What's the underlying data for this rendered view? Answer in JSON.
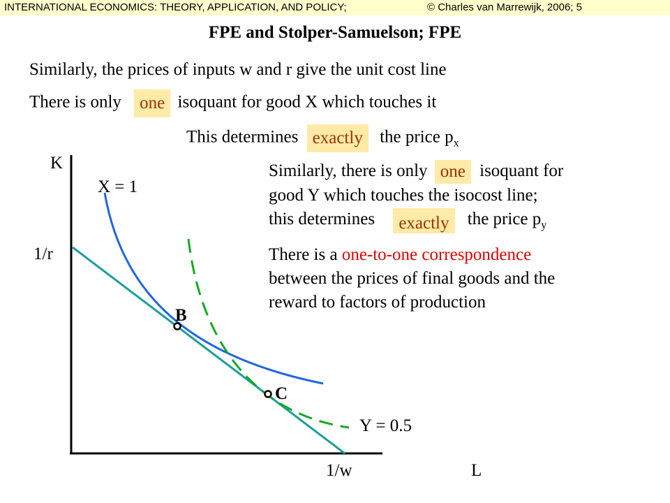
{
  "header": {
    "left_text": "INTERNATIONAL ECONOMICS: THEORY, APPLICATION, AND POLICY;",
    "right_text": "© Charles van Marrewijk, 2006; 5"
  },
  "slide": {
    "title": "FPE and Stolper-Samuelson; FPE",
    "line1": "Similarly, the prices of inputs w and r give the unit cost line",
    "line2": {
      "before": "There is only",
      "highlight": "one",
      "after": "isoquant for good X which touches it"
    },
    "line3": {
      "before": "This determines",
      "highlight": "exactly",
      "after": "the price p",
      "subscript": "x"
    },
    "para_y": {
      "l1_before": "Similarly, there is only",
      "l1_highlight": "one",
      "l1_after": "isoquant for",
      "l2": "good Y which touches the isocost line;",
      "l3_before": "this determines",
      "l3_highlight": "exactly",
      "l3_after": "the price p",
      "l3_subscript": "y"
    },
    "para_corr": {
      "l1_before": "There is a",
      "l1_red": "one-to-one correspondence",
      "l2": "between the prices of final goods and the",
      "l3": "reward to factors of production"
    }
  },
  "diagram": {
    "y_axis_label": "K",
    "x_axis_label": "L",
    "y_intercept_label": "1/r",
    "x_intercept_label": "1/w",
    "isoquant_x_label": "X = 1",
    "isoquant_y_label": "Y = 0.5",
    "point_b_label": "B",
    "point_c_label": "C",
    "colors": {
      "isocost_line": "#1a9e9a",
      "isoquant_x": "#2266dd",
      "isoquant_y": "#11aa22",
      "highlight_bg": "#ffeaa7",
      "highlight_text": "#993300",
      "correspondence_text": "#e00000"
    }
  }
}
